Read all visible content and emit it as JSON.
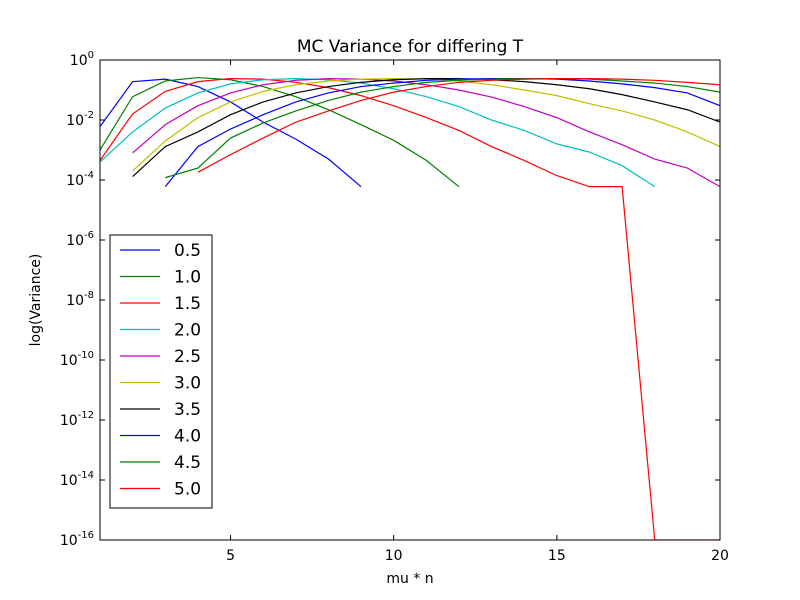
{
  "chart_data": {
    "type": "line",
    "title": "MC Variance for differing T",
    "xlabel": "mu * n",
    "ylabel": "log(Variance)",
    "xlim": [
      1,
      20
    ],
    "ylim_log10": [
      -16,
      0
    ],
    "y_scale": "log",
    "x_ticks": [
      5,
      10,
      15,
      20
    ],
    "y_ticks": [
      {
        "base": "10",
        "exp": "0",
        "value": 1.0
      },
      {
        "base": "10",
        "exp": "-2",
        "value": 0.01
      },
      {
        "base": "10",
        "exp": "-4",
        "value": 0.0001
      },
      {
        "base": "10",
        "exp": "-6",
        "value": 1e-06
      },
      {
        "base": "10",
        "exp": "-8",
        "value": 1e-08
      },
      {
        "base": "10",
        "exp": "-10",
        "value": 1e-10
      },
      {
        "base": "10",
        "exp": "-12",
        "value": 1e-12
      },
      {
        "base": "10",
        "exp": "-14",
        "value": 1e-14
      },
      {
        "base": "10",
        "exp": "-16",
        "value": 1e-16
      }
    ],
    "grid": false,
    "legend_position": "lower-left",
    "series": [
      {
        "name": "0.5",
        "color": "#0000ff",
        "points": [
          [
            1,
            0.006
          ],
          [
            2,
            0.19
          ],
          [
            3,
            0.23
          ],
          [
            4,
            0.13
          ],
          [
            5,
            0.04
          ],
          [
            6,
            0.0085
          ],
          [
            7,
            0.0023
          ],
          [
            8,
            0.0005
          ],
          [
            9,
            6e-05
          ]
        ]
      },
      {
        "name": "1.0",
        "color": "#008000",
        "points": [
          [
            1,
            0.001
          ],
          [
            2,
            0.06
          ],
          [
            3,
            0.2
          ],
          [
            4,
            0.26
          ],
          [
            5,
            0.22
          ],
          [
            6,
            0.13
          ],
          [
            7,
            0.06
          ],
          [
            8,
            0.022
          ],
          [
            9,
            0.007
          ],
          [
            10,
            0.0021
          ],
          [
            11,
            0.00045
          ],
          [
            12,
            6e-05
          ]
        ]
      },
      {
        "name": "1.5",
        "color": "#ff0000",
        "points": [
          [
            1,
            0.00045
          ],
          [
            2,
            0.016
          ],
          [
            3,
            0.09
          ],
          [
            4,
            0.19
          ],
          [
            5,
            0.24
          ],
          [
            6,
            0.23
          ],
          [
            7,
            0.18
          ],
          [
            8,
            0.12
          ],
          [
            9,
            0.065
          ],
          [
            10,
            0.03
          ],
          [
            11,
            0.012
          ],
          [
            12,
            0.0045
          ],
          [
            13,
            0.0013
          ],
          [
            14,
            0.00045
          ],
          [
            15,
            0.00014
          ],
          [
            16,
            6e-05
          ],
          [
            17,
            6e-05
          ],
          [
            18,
            1e-16
          ],
          [
            19,
            1e-16
          ],
          [
            20,
            1e-16
          ]
        ]
      },
      {
        "name": "2.0",
        "color": "#00bfbf",
        "points": [
          [
            1,
            0.0004
          ],
          [
            2,
            0.004
          ],
          [
            3,
            0.025
          ],
          [
            4,
            0.08
          ],
          [
            5,
            0.16
          ],
          [
            6,
            0.22
          ],
          [
            7,
            0.24
          ],
          [
            8,
            0.22
          ],
          [
            9,
            0.17
          ],
          [
            10,
            0.11
          ],
          [
            11,
            0.06
          ],
          [
            12,
            0.028
          ],
          [
            13,
            0.01
          ],
          [
            14,
            0.0045
          ],
          [
            15,
            0.0016
          ],
          [
            16,
            0.00085
          ],
          [
            17,
            0.0003
          ],
          [
            18,
            6e-05
          ]
        ]
      },
      {
        "name": "2.5",
        "color": "#bf00bf",
        "points": [
          [
            2,
            0.0008
          ],
          [
            3,
            0.007
          ],
          [
            4,
            0.03
          ],
          [
            5,
            0.08
          ],
          [
            6,
            0.15
          ],
          [
            7,
            0.21
          ],
          [
            8,
            0.24
          ],
          [
            9,
            0.23
          ],
          [
            10,
            0.2
          ],
          [
            11,
            0.15
          ],
          [
            12,
            0.1
          ],
          [
            13,
            0.058
          ],
          [
            14,
            0.028
          ],
          [
            15,
            0.012
          ],
          [
            16,
            0.004
          ],
          [
            17,
            0.0015
          ],
          [
            18,
            0.0005
          ],
          [
            19,
            0.00025
          ],
          [
            20,
            6e-05
          ]
        ]
      },
      {
        "name": "3.0",
        "color": "#bfbf00",
        "points": [
          [
            2,
            0.0002
          ],
          [
            3,
            0.002
          ],
          [
            4,
            0.012
          ],
          [
            5,
            0.04
          ],
          [
            6,
            0.09
          ],
          [
            7,
            0.15
          ],
          [
            8,
            0.2
          ],
          [
            9,
            0.23
          ],
          [
            10,
            0.24
          ],
          [
            11,
            0.23
          ],
          [
            12,
            0.2
          ],
          [
            13,
            0.15
          ],
          [
            14,
            0.1
          ],
          [
            15,
            0.065
          ],
          [
            16,
            0.035
          ],
          [
            17,
            0.02
          ],
          [
            18,
            0.01
          ],
          [
            19,
            0.004
          ],
          [
            20,
            0.0013
          ]
        ]
      },
      {
        "name": "3.5",
        "color": "#000000",
        "points": [
          [
            2,
            0.00013
          ],
          [
            3,
            0.0013
          ],
          [
            4,
            0.004
          ],
          [
            5,
            0.015
          ],
          [
            6,
            0.04
          ],
          [
            7,
            0.08
          ],
          [
            8,
            0.13
          ],
          [
            9,
            0.18
          ],
          [
            10,
            0.22
          ],
          [
            11,
            0.24
          ],
          [
            12,
            0.24
          ],
          [
            13,
            0.22
          ],
          [
            14,
            0.19
          ],
          [
            15,
            0.15
          ],
          [
            16,
            0.11
          ],
          [
            17,
            0.07
          ],
          [
            18,
            0.04
          ],
          [
            19,
            0.022
          ],
          [
            20,
            0.0085
          ]
        ]
      },
      {
        "name": "4.0",
        "color": "#0000ff",
        "points": [
          [
            3,
            6e-05
          ],
          [
            4,
            0.0013
          ],
          [
            5,
            0.005
          ],
          [
            6,
            0.015
          ],
          [
            7,
            0.04
          ],
          [
            8,
            0.08
          ],
          [
            9,
            0.13
          ],
          [
            10,
            0.17
          ],
          [
            11,
            0.21
          ],
          [
            12,
            0.23
          ],
          [
            13,
            0.24
          ],
          [
            14,
            0.24
          ],
          [
            15,
            0.23
          ],
          [
            16,
            0.2
          ],
          [
            17,
            0.16
          ],
          [
            18,
            0.12
          ],
          [
            19,
            0.08
          ],
          [
            20,
            0.03
          ]
        ]
      },
      {
        "name": "4.5",
        "color": "#008000",
        "points": [
          [
            3,
            0.00012
          ],
          [
            4,
            0.00025
          ],
          [
            5,
            0.0025
          ],
          [
            6,
            0.008
          ],
          [
            7,
            0.02
          ],
          [
            8,
            0.045
          ],
          [
            9,
            0.085
          ],
          [
            10,
            0.13
          ],
          [
            11,
            0.18
          ],
          [
            12,
            0.21
          ],
          [
            13,
            0.23
          ],
          [
            14,
            0.24
          ],
          [
            15,
            0.24
          ],
          [
            16,
            0.23
          ],
          [
            17,
            0.2
          ],
          [
            18,
            0.17
          ],
          [
            19,
            0.13
          ],
          [
            20,
            0.085
          ]
        ]
      },
      {
        "name": "5.0",
        "color": "#ff0000",
        "points": [
          [
            4,
            0.00018
          ],
          [
            5,
            0.0007
          ],
          [
            6,
            0.0025
          ],
          [
            7,
            0.0085
          ],
          [
            8,
            0.02
          ],
          [
            9,
            0.045
          ],
          [
            10,
            0.085
          ],
          [
            11,
            0.13
          ],
          [
            12,
            0.18
          ],
          [
            13,
            0.21
          ],
          [
            14,
            0.23
          ],
          [
            15,
            0.24
          ],
          [
            16,
            0.24
          ],
          [
            17,
            0.23
          ],
          [
            18,
            0.21
          ],
          [
            19,
            0.18
          ],
          [
            20,
            0.15
          ]
        ]
      }
    ]
  }
}
